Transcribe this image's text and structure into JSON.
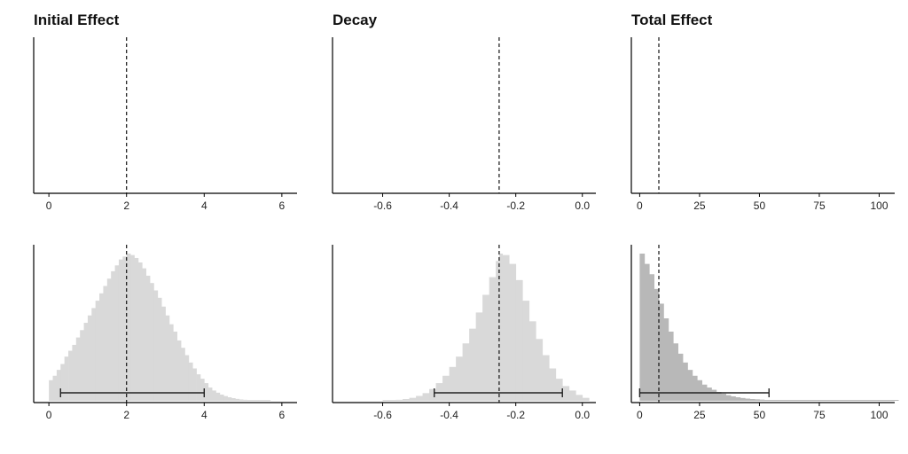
{
  "chart_data": [
    {
      "type": "histogram",
      "title": "Initial Effect",
      "xlim": [
        -0.3,
        6.3
      ],
      "xticks": [
        0,
        2,
        4,
        6
      ],
      "tick_labels": [
        "0",
        "2",
        "4",
        "6"
      ],
      "reference_line": 2,
      "grid": false,
      "rows": [
        {
          "row": "top",
          "bins": [],
          "interval": null
        },
        {
          "row": "bottom",
          "color": "#d9d9d9",
          "interval": [
            0.3,
            4.0
          ],
          "bins": [
            {
              "x": 0.0,
              "h": 0.14
            },
            {
              "x": 0.1,
              "h": 0.17
            },
            {
              "x": 0.2,
              "h": 0.21
            },
            {
              "x": 0.3,
              "h": 0.25
            },
            {
              "x": 0.4,
              "h": 0.3
            },
            {
              "x": 0.5,
              "h": 0.34
            },
            {
              "x": 0.6,
              "h": 0.38
            },
            {
              "x": 0.7,
              "h": 0.43
            },
            {
              "x": 0.8,
              "h": 0.48
            },
            {
              "x": 0.9,
              "h": 0.53
            },
            {
              "x": 1.0,
              "h": 0.58
            },
            {
              "x": 1.1,
              "h": 0.63
            },
            {
              "x": 1.2,
              "h": 0.68
            },
            {
              "x": 1.3,
              "h": 0.73
            },
            {
              "x": 1.4,
              "h": 0.78
            },
            {
              "x": 1.5,
              "h": 0.83
            },
            {
              "x": 1.6,
              "h": 0.88
            },
            {
              "x": 1.7,
              "h": 0.92
            },
            {
              "x": 1.8,
              "h": 0.96
            },
            {
              "x": 1.9,
              "h": 0.98
            },
            {
              "x": 2.0,
              "h": 1.0
            },
            {
              "x": 2.1,
              "h": 0.99
            },
            {
              "x": 2.2,
              "h": 0.97
            },
            {
              "x": 2.3,
              "h": 0.94
            },
            {
              "x": 2.4,
              "h": 0.9
            },
            {
              "x": 2.5,
              "h": 0.85
            },
            {
              "x": 2.6,
              "h": 0.8
            },
            {
              "x": 2.7,
              "h": 0.75
            },
            {
              "x": 2.8,
              "h": 0.7
            },
            {
              "x": 2.9,
              "h": 0.64
            },
            {
              "x": 3.0,
              "h": 0.58
            },
            {
              "x": 3.1,
              "h": 0.52
            },
            {
              "x": 3.2,
              "h": 0.47
            },
            {
              "x": 3.3,
              "h": 0.41
            },
            {
              "x": 3.4,
              "h": 0.36
            },
            {
              "x": 3.5,
              "h": 0.31
            },
            {
              "x": 3.6,
              "h": 0.26
            },
            {
              "x": 3.7,
              "h": 0.22
            },
            {
              "x": 3.8,
              "h": 0.18
            },
            {
              "x": 3.9,
              "h": 0.15
            },
            {
              "x": 4.0,
              "h": 0.12
            },
            {
              "x": 4.1,
              "h": 0.09
            },
            {
              "x": 4.2,
              "h": 0.07
            },
            {
              "x": 4.3,
              "h": 0.055
            },
            {
              "x": 4.4,
              "h": 0.042
            },
            {
              "x": 4.5,
              "h": 0.032
            },
            {
              "x": 4.6,
              "h": 0.024
            },
            {
              "x": 4.7,
              "h": 0.018
            },
            {
              "x": 4.8,
              "h": 0.013
            },
            {
              "x": 4.9,
              "h": 0.009
            },
            {
              "x": 5.0,
              "h": 0.007
            },
            {
              "x": 5.1,
              "h": 0.005
            },
            {
              "x": 5.2,
              "h": 0.004
            },
            {
              "x": 5.3,
              "h": 0.003
            },
            {
              "x": 5.4,
              "h": 0.002
            },
            {
              "x": 5.5,
              "h": 0.002
            },
            {
              "x": 5.6,
              "h": 0.001
            }
          ]
        }
      ]
    },
    {
      "type": "histogram",
      "title": "Decay",
      "xlim": [
        -0.74,
        0.03
      ],
      "xticks": [
        -0.6,
        -0.4,
        -0.2,
        0.0
      ],
      "tick_labels": [
        "-0.6",
        "-0.4",
        "-0.2",
        "0.0"
      ],
      "reference_line": -0.25,
      "grid": false,
      "rows": [
        {
          "row": "top",
          "bins": [],
          "interval": null
        },
        {
          "row": "bottom",
          "color": "#d9d9d9",
          "interval": [
            -0.445,
            -0.06
          ],
          "bins": [
            {
              "x": -0.6,
              "h": 0.002
            },
            {
              "x": -0.58,
              "h": 0.004
            },
            {
              "x": -0.56,
              "h": 0.007
            },
            {
              "x": -0.54,
              "h": 0.012
            },
            {
              "x": -0.52,
              "h": 0.02
            },
            {
              "x": -0.5,
              "h": 0.033
            },
            {
              "x": -0.48,
              "h": 0.052
            },
            {
              "x": -0.46,
              "h": 0.08
            },
            {
              "x": -0.44,
              "h": 0.12
            },
            {
              "x": -0.42,
              "h": 0.17
            },
            {
              "x": -0.4,
              "h": 0.23
            },
            {
              "x": -0.38,
              "h": 0.3
            },
            {
              "x": -0.36,
              "h": 0.39
            },
            {
              "x": -0.34,
              "h": 0.49
            },
            {
              "x": -0.32,
              "h": 0.6
            },
            {
              "x": -0.3,
              "h": 0.72
            },
            {
              "x": -0.28,
              "h": 0.84
            },
            {
              "x": -0.26,
              "h": 0.95
            },
            {
              "x": -0.25,
              "h": 1.0
            },
            {
              "x": -0.24,
              "h": 0.99
            },
            {
              "x": -0.22,
              "h": 0.93
            },
            {
              "x": -0.2,
              "h": 0.82
            },
            {
              "x": -0.18,
              "h": 0.68
            },
            {
              "x": -0.16,
              "h": 0.54
            },
            {
              "x": -0.14,
              "h": 0.42
            },
            {
              "x": -0.12,
              "h": 0.31
            },
            {
              "x": -0.1,
              "h": 0.22
            },
            {
              "x": -0.08,
              "h": 0.15
            },
            {
              "x": -0.06,
              "h": 0.1
            },
            {
              "x": -0.04,
              "h": 0.07
            },
            {
              "x": -0.02,
              "h": 0.04
            },
            {
              "x": 0.0,
              "h": 0.02
            }
          ]
        }
      ]
    },
    {
      "type": "histogram",
      "title": "Total Effect",
      "xlim": [
        -2,
        105
      ],
      "xticks": [
        0,
        25,
        50,
        75,
        100
      ],
      "tick_labels": [
        "0",
        "25",
        "50",
        "75",
        "100"
      ],
      "reference_line": 8,
      "grid": false,
      "rows": [
        {
          "row": "top",
          "bins": [],
          "interval": null
        },
        {
          "row": "bottom",
          "color": "#b8b8b8",
          "interval": [
            0,
            54
          ],
          "bins": [
            {
              "x": 0,
              "h": 1.0
            },
            {
              "x": 2,
              "h": 0.93
            },
            {
              "x": 4,
              "h": 0.86
            },
            {
              "x": 6,
              "h": 0.76
            },
            {
              "x": 8,
              "h": 0.66
            },
            {
              "x": 10,
              "h": 0.56
            },
            {
              "x": 12,
              "h": 0.47
            },
            {
              "x": 14,
              "h": 0.39
            },
            {
              "x": 16,
              "h": 0.32
            },
            {
              "x": 18,
              "h": 0.26
            },
            {
              "x": 20,
              "h": 0.21
            },
            {
              "x": 22,
              "h": 0.17
            },
            {
              "x": 24,
              "h": 0.14
            },
            {
              "x": 26,
              "h": 0.11
            },
            {
              "x": 28,
              "h": 0.09
            },
            {
              "x": 30,
              "h": 0.075
            },
            {
              "x": 32,
              "h": 0.06
            },
            {
              "x": 34,
              "h": 0.048
            },
            {
              "x": 36,
              "h": 0.038
            },
            {
              "x": 38,
              "h": 0.03
            },
            {
              "x": 40,
              "h": 0.024
            },
            {
              "x": 42,
              "h": 0.019
            },
            {
              "x": 44,
              "h": 0.015
            },
            {
              "x": 46,
              "h": 0.012
            },
            {
              "x": 48,
              "h": 0.01
            },
            {
              "x": 50,
              "h": 0.008
            },
            {
              "x": 52,
              "h": 0.006
            },
            {
              "x": 54,
              "h": 0.005
            },
            {
              "x": 60,
              "h": 0.004
            },
            {
              "x": 66,
              "h": 0.003
            },
            {
              "x": 72,
              "h": 0.002
            },
            {
              "x": 78,
              "h": 0.002
            },
            {
              "x": 84,
              "h": 0.001
            },
            {
              "x": 90,
              "h": 0.001
            },
            {
              "x": 96,
              "h": 0.001
            },
            {
              "x": 102,
              "h": 0.001
            }
          ]
        }
      ]
    }
  ]
}
